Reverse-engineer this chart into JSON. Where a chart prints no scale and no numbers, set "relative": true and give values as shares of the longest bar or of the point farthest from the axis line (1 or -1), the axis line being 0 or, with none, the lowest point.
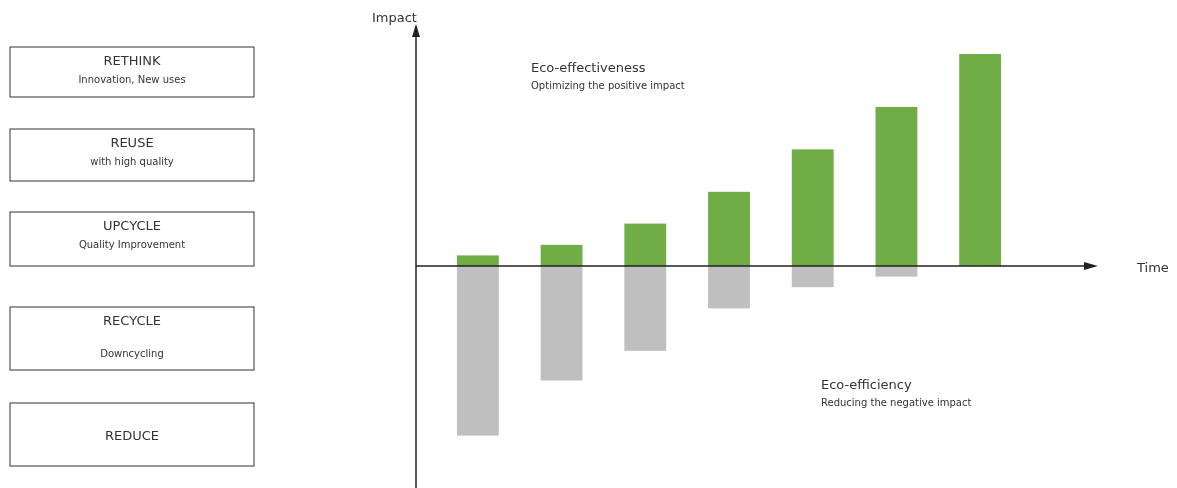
{
  "chart_data": [
    {
      "type": "other",
      "annotations": [
        "RETHINK\nInnovation, New uses",
        "REUSE\nwith high quality",
        "UPCYCLE\nQuality Improvement",
        "RECYCLE\n\nDowncycling",
        "REDUCE"
      ]
    },
    {
      "type": "bar",
      "relative": true,
      "stacked": true,
      "xlabel": "Time",
      "ylabel": "Impact",
      "categories": [
        null,
        null,
        null,
        null,
        null,
        null,
        null
      ],
      "series": [
        {
          "color": "#70ad47",
          "values": [
            0.05,
            0.1,
            0.2,
            0.35,
            0.55,
            0.75,
            1
          ]
        },
        {
          "color": "#bfbfbf",
          "values": [
            -0.8,
            -0.54,
            -0.4,
            -0.2,
            -0.1,
            -0.05,
            0
          ]
        }
      ],
      "annotations": [
        {
          "text": "Eco-effectiveness\nOptimizing the positive impact"
        },
        {
          "text": "Eco-efficiency\nReducing the negative impact"
        }
      ]
    }
  ]
}
